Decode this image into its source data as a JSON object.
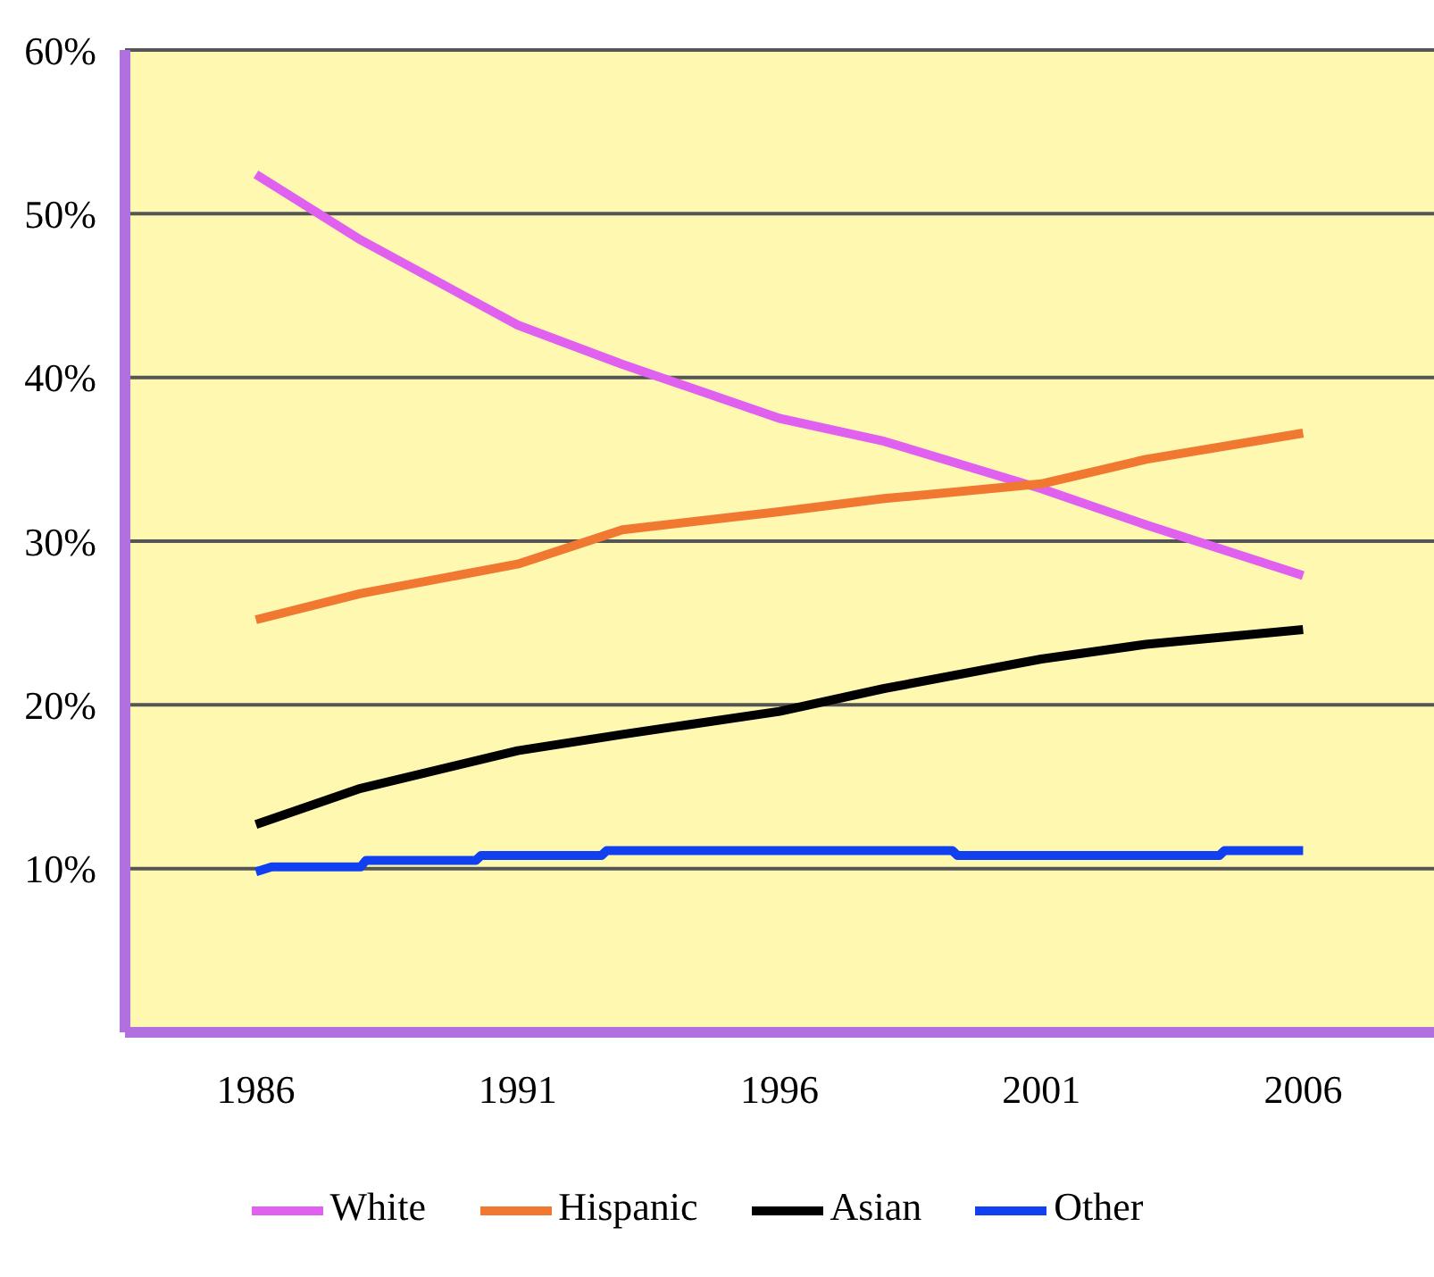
{
  "chart_data": {
    "type": "line",
    "xlim": [
      1983.5,
      2008.5
    ],
    "xticks": [
      1986,
      1991,
      1996,
      2001,
      2006
    ],
    "ylim": [
      0,
      60
    ],
    "yticks": [
      {
        "value": 10,
        "label": "10%"
      },
      {
        "value": 20,
        "label": "20%"
      },
      {
        "value": 30,
        "label": "30%"
      },
      {
        "value": 40,
        "label": "40%"
      },
      {
        "value": 50,
        "label": "50%"
      },
      {
        "value": 60,
        "label": "60%"
      }
    ],
    "grid": "y",
    "legend": "bottom",
    "marker": "none",
    "line_style": "solid",
    "series": [
      {
        "name": "White",
        "color": "#e060f0",
        "x": [
          1986,
          1988,
          1991,
          1993,
          1996,
          1998,
          2001,
          2003,
          2006
        ],
        "values": [
          52.4,
          48.4,
          43.2,
          40.8,
          37.5,
          36.1,
          33.2,
          31.0,
          27.9
        ]
      },
      {
        "name": "Hispanic",
        "color": "#f07830",
        "x": [
          1986,
          1988,
          1991,
          1993,
          1996,
          1998,
          2001,
          2003,
          2006
        ],
        "values": [
          25.2,
          26.8,
          28.6,
          30.7,
          31.8,
          32.6,
          33.5,
          35.0,
          36.6
        ]
      },
      {
        "name": "Asian",
        "color": "#000000",
        "x": [
          1986,
          1988,
          1991,
          1993,
          1996,
          1998,
          2001,
          2003,
          2006
        ],
        "values": [
          12.7,
          14.9,
          17.2,
          18.2,
          19.6,
          21.0,
          22.8,
          23.7,
          24.6
        ]
      },
      {
        "name": "Other",
        "color": "#1040f0",
        "x": [
          1986,
          1986.3,
          1988,
          1988.1,
          1990.2,
          1990.3,
          1992.6,
          1992.7,
          1999.3,
          1999.4,
          2004.4,
          2004.5,
          2006
        ],
        "values": [
          9.8,
          10.1,
          10.1,
          10.5,
          10.5,
          10.8,
          10.8,
          11.1,
          11.1,
          10.8,
          10.8,
          11.1,
          11.1
        ]
      }
    ]
  }
}
